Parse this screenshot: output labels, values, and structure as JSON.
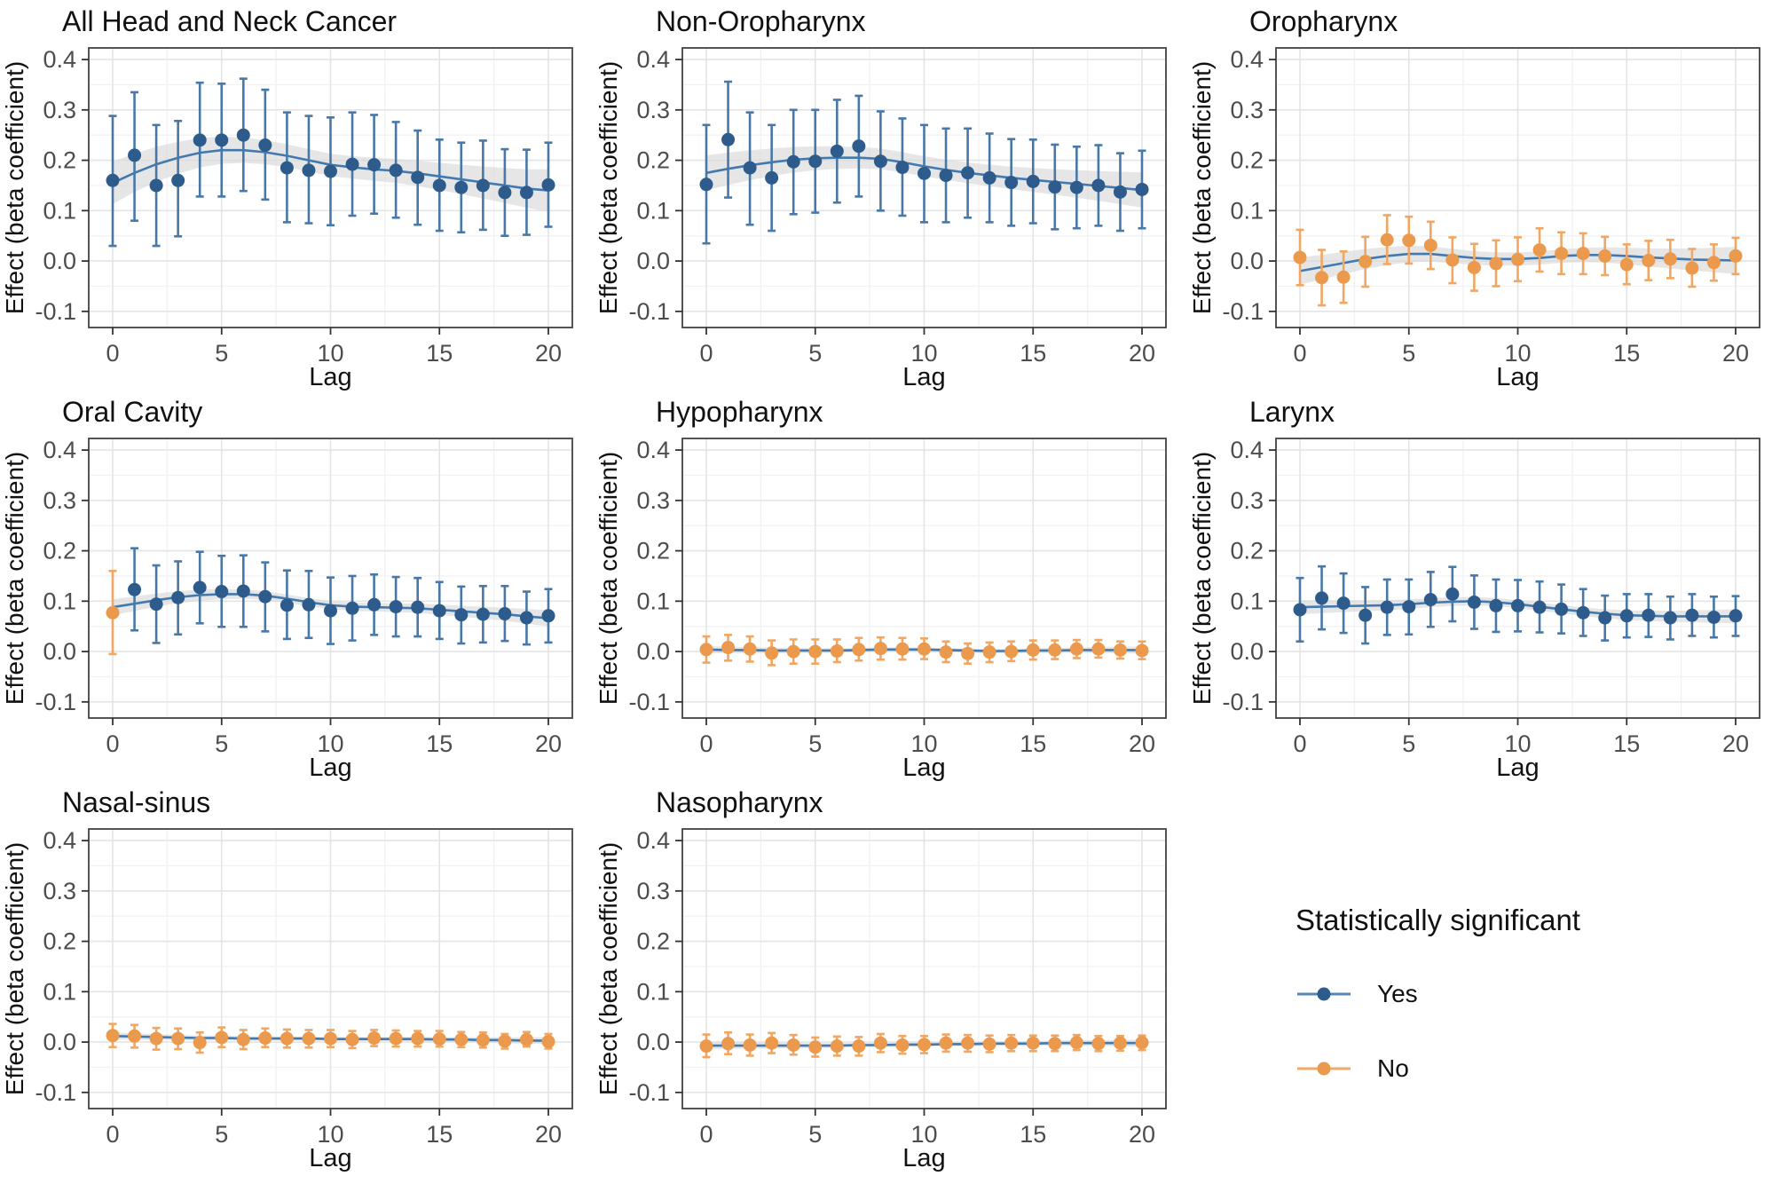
{
  "figure": {
    "ylabel": "Effect (beta coefficient)",
    "xlabel": "Lag",
    "lags": [
      0,
      1,
      2,
      3,
      4,
      5,
      6,
      7,
      8,
      9,
      10,
      11,
      12,
      13,
      14,
      15,
      16,
      17,
      18,
      19,
      20
    ],
    "axes": {
      "xlim": [
        -1.1,
        21.1
      ],
      "ylim": [
        -0.132,
        0.423
      ],
      "xtick_vals": [
        0,
        5,
        10,
        15,
        20
      ],
      "xtick_labels": [
        "0",
        "5",
        "10",
        "15",
        "20"
      ],
      "xtick_minor": [
        2.5,
        7.5,
        12.5,
        17.5
      ],
      "ytick_vals": [
        -0.1,
        0.0,
        0.1,
        0.2,
        0.3,
        0.4
      ],
      "ytick_labels": [
        "-0.1",
        "0.0",
        "0.1",
        "0.2",
        "0.3",
        "0.4"
      ],
      "ytick_minor": [
        -0.05,
        0.05,
        0.15,
        0.25,
        0.35
      ],
      "grid": "on"
    },
    "colors": {
      "sig_point": "#2d5c8c",
      "sig_bar": "#4878a8",
      "nonsig_point": "#eb9a4d",
      "nonsig_bar": "#f1a763",
      "smooth_line": "#4179b0",
      "ribbon": "#d9d9d9",
      "grid_major": "#e4e4e4",
      "grid_minor": "#f2f2f2",
      "panel_border": "#424242",
      "tick_mark": "#333333",
      "tick_text": "#4d4d4d",
      "axis_title": "#111111"
    },
    "legend": {
      "title": "Statistically significant",
      "items": [
        {
          "label": "Yes",
          "point_color": "#2d5c8c",
          "line_color": "#5585b5"
        },
        {
          "label": "No",
          "point_color": "#eb9a4d",
          "line_color": "#f2a966"
        }
      ]
    }
  },
  "chart_data": [
    {
      "type": "scatter",
      "title": "All Head and Neck Cancer",
      "xlabel": "Lag",
      "ylabel": "Effect (beta coefficient)",
      "significant": "all",
      "y": [
        0.16,
        0.21,
        0.15,
        0.16,
        0.24,
        0.24,
        0.25,
        0.23,
        0.185,
        0.18,
        0.178,
        0.192,
        0.191,
        0.18,
        0.166,
        0.15,
        0.146,
        0.15,
        0.136,
        0.136,
        0.151
      ],
      "lower": [
        0.03,
        0.08,
        0.03,
        0.049,
        0.128,
        0.128,
        0.139,
        0.122,
        0.077,
        0.075,
        0.071,
        0.09,
        0.094,
        0.086,
        0.072,
        0.06,
        0.057,
        0.062,
        0.05,
        0.052,
        0.068
      ],
      "upper": [
        0.288,
        0.335,
        0.27,
        0.278,
        0.354,
        0.352,
        0.362,
        0.34,
        0.295,
        0.288,
        0.285,
        0.295,
        0.29,
        0.276,
        0.259,
        0.241,
        0.235,
        0.239,
        0.222,
        0.221,
        0.235
      ],
      "smooth": [
        0.155,
        0.175,
        0.192,
        0.205,
        0.215,
        0.22,
        0.22,
        0.216,
        0.209,
        0.2,
        0.191,
        0.186,
        0.182,
        0.179,
        0.174,
        0.168,
        0.162,
        0.156,
        0.15,
        0.144,
        0.14
      ],
      "ribbon": {
        "mid": 0.022,
        "edge": 0.042
      }
    },
    {
      "type": "scatter",
      "title": "Non-Oropharynx",
      "xlabel": "Lag",
      "ylabel": "Effect (beta coefficient)",
      "significant": "all",
      "y": [
        0.152,
        0.241,
        0.185,
        0.165,
        0.197,
        0.198,
        0.218,
        0.228,
        0.198,
        0.186,
        0.174,
        0.17,
        0.175,
        0.165,
        0.156,
        0.158,
        0.147,
        0.146,
        0.15,
        0.137,
        0.142
      ],
      "lower": [
        0.035,
        0.126,
        0.072,
        0.06,
        0.093,
        0.096,
        0.116,
        0.128,
        0.1,
        0.09,
        0.077,
        0.077,
        0.086,
        0.077,
        0.07,
        0.075,
        0.063,
        0.065,
        0.07,
        0.06,
        0.065
      ],
      "upper": [
        0.27,
        0.356,
        0.295,
        0.27,
        0.3,
        0.3,
        0.32,
        0.328,
        0.297,
        0.283,
        0.27,
        0.263,
        0.263,
        0.253,
        0.242,
        0.241,
        0.231,
        0.227,
        0.23,
        0.214,
        0.219
      ],
      "smooth": [
        0.175,
        0.183,
        0.19,
        0.196,
        0.201,
        0.204,
        0.205,
        0.205,
        0.203,
        0.196,
        0.188,
        0.181,
        0.175,
        0.17,
        0.165,
        0.161,
        0.157,
        0.153,
        0.149,
        0.145,
        0.141
      ],
      "ribbon": {
        "mid": 0.02,
        "edge": 0.035
      }
    },
    {
      "type": "scatter",
      "title": "Oropharynx",
      "xlabel": "Lag",
      "ylabel": "Effect (beta coefficient)",
      "significant": "none",
      "y": [
        0.007,
        -0.033,
        -0.032,
        -0.001,
        0.042,
        0.041,
        0.031,
        0.002,
        -0.013,
        -0.005,
        0.003,
        0.022,
        0.015,
        0.015,
        0.01,
        -0.007,
        0.001,
        0.004,
        -0.014,
        -0.003,
        0.01
      ],
      "lower": [
        -0.048,
        -0.088,
        -0.083,
        -0.051,
        -0.006,
        -0.005,
        -0.016,
        -0.044,
        -0.059,
        -0.05,
        -0.04,
        -0.021,
        -0.026,
        -0.026,
        -0.028,
        -0.046,
        -0.038,
        -0.034,
        -0.051,
        -0.039,
        -0.026
      ],
      "upper": [
        0.062,
        0.022,
        0.019,
        0.048,
        0.091,
        0.088,
        0.078,
        0.047,
        0.034,
        0.041,
        0.047,
        0.065,
        0.057,
        0.055,
        0.048,
        0.033,
        0.04,
        0.042,
        0.024,
        0.033,
        0.046
      ],
      "smooth": [
        -0.02,
        -0.012,
        -0.004,
        0.004,
        0.01,
        0.014,
        0.014,
        0.01,
        0.006,
        0.004,
        0.004,
        0.006,
        0.01,
        0.012,
        0.012,
        0.01,
        0.007,
        0.005,
        0.003,
        0.002,
        0.001
      ],
      "ribbon": {
        "mid": 0.013,
        "edge": 0.027
      }
    },
    {
      "type": "scatter",
      "title": "Oral Cavity",
      "xlabel": "Lag",
      "ylabel": "Effect (beta coefficient)",
      "significant": {
        "except": [
          0
        ]
      },
      "y": [
        0.077,
        0.123,
        0.094,
        0.107,
        0.127,
        0.119,
        0.12,
        0.109,
        0.092,
        0.093,
        0.081,
        0.086,
        0.093,
        0.089,
        0.088,
        0.081,
        0.073,
        0.074,
        0.075,
        0.067,
        0.071
      ],
      "lower": [
        -0.005,
        0.042,
        0.017,
        0.034,
        0.056,
        0.049,
        0.049,
        0.04,
        0.025,
        0.027,
        0.015,
        0.022,
        0.033,
        0.03,
        0.03,
        0.025,
        0.016,
        0.018,
        0.021,
        0.014,
        0.018
      ],
      "upper": [
        0.16,
        0.205,
        0.171,
        0.179,
        0.198,
        0.19,
        0.191,
        0.177,
        0.161,
        0.16,
        0.147,
        0.15,
        0.153,
        0.148,
        0.146,
        0.138,
        0.129,
        0.13,
        0.13,
        0.119,
        0.124
      ],
      "smooth": [
        0.088,
        0.095,
        0.102,
        0.108,
        0.112,
        0.114,
        0.114,
        0.111,
        0.105,
        0.098,
        0.092,
        0.089,
        0.088,
        0.087,
        0.086,
        0.083,
        0.08,
        0.077,
        0.074,
        0.07,
        0.066
      ],
      "ribbon": {
        "mid": 0.008,
        "edge": 0.016
      }
    },
    {
      "type": "scatter",
      "title": "Hypopharynx",
      "xlabel": "Lag",
      "ylabel": "Effect (beta coefficient)",
      "significant": "none",
      "y": [
        0.004,
        0.008,
        0.005,
        -0.003,
        0.0,
        0.0,
        0.001,
        0.004,
        0.006,
        0.005,
        0.005,
        -0.001,
        -0.004,
        -0.001,
        0.0,
        0.003,
        0.003,
        0.005,
        0.005,
        0.003,
        0.002
      ],
      "lower": [
        -0.022,
        -0.018,
        -0.02,
        -0.027,
        -0.024,
        -0.024,
        -0.021,
        -0.018,
        -0.016,
        -0.016,
        -0.015,
        -0.021,
        -0.024,
        -0.021,
        -0.019,
        -0.016,
        -0.015,
        -0.013,
        -0.012,
        -0.014,
        -0.015
      ],
      "upper": [
        0.03,
        0.033,
        0.03,
        0.022,
        0.024,
        0.024,
        0.024,
        0.027,
        0.028,
        0.027,
        0.026,
        0.02,
        0.016,
        0.018,
        0.02,
        0.022,
        0.022,
        0.023,
        0.023,
        0.02,
        0.02
      ],
      "smooth": [
        0.004,
        0.003,
        0.003,
        0.002,
        0.002,
        0.002,
        0.002,
        0.003,
        0.004,
        0.004,
        0.004,
        0.003,
        0.002,
        0.001,
        0.001,
        0.002,
        0.002,
        0.003,
        0.003,
        0.003,
        0.003
      ],
      "ribbon": {
        "mid": 0.004,
        "edge": 0.007
      }
    },
    {
      "type": "scatter",
      "title": "Larynx",
      "xlabel": "Lag",
      "ylabel": "Effect (beta coefficient)",
      "significant": "all",
      "y": [
        0.083,
        0.106,
        0.096,
        0.072,
        0.088,
        0.089,
        0.103,
        0.114,
        0.098,
        0.091,
        0.091,
        0.088,
        0.084,
        0.077,
        0.067,
        0.071,
        0.072,
        0.067,
        0.072,
        0.068,
        0.071
      ],
      "lower": [
        0.02,
        0.044,
        0.037,
        0.016,
        0.033,
        0.034,
        0.049,
        0.06,
        0.045,
        0.039,
        0.04,
        0.038,
        0.036,
        0.031,
        0.022,
        0.028,
        0.029,
        0.024,
        0.031,
        0.028,
        0.031
      ],
      "upper": [
        0.146,
        0.169,
        0.155,
        0.128,
        0.143,
        0.143,
        0.158,
        0.168,
        0.151,
        0.143,
        0.142,
        0.139,
        0.133,
        0.124,
        0.111,
        0.114,
        0.114,
        0.109,
        0.114,
        0.109,
        0.11
      ],
      "smooth": [
        0.088,
        0.089,
        0.09,
        0.091,
        0.092,
        0.094,
        0.097,
        0.099,
        0.1,
        0.098,
        0.094,
        0.089,
        0.084,
        0.079,
        0.075,
        0.072,
        0.071,
        0.07,
        0.07,
        0.07,
        0.07
      ],
      "ribbon": {
        "mid": 0.008,
        "edge": 0.014
      }
    },
    {
      "type": "scatter",
      "title": "Nasal-sinus",
      "xlabel": "Lag",
      "ylabel": "Effect (beta coefficient)",
      "significant": "none",
      "y": [
        0.013,
        0.012,
        0.007,
        0.007,
        -0.001,
        0.009,
        0.005,
        0.008,
        0.007,
        0.007,
        0.007,
        0.005,
        0.008,
        0.007,
        0.007,
        0.006,
        0.005,
        0.004,
        0.002,
        0.005,
        0.001
      ],
      "lower": [
        -0.01,
        -0.011,
        -0.015,
        -0.014,
        -0.021,
        -0.01,
        -0.014,
        -0.01,
        -0.011,
        -0.011,
        -0.01,
        -0.012,
        -0.008,
        -0.009,
        -0.009,
        -0.009,
        -0.01,
        -0.011,
        -0.013,
        -0.009,
        -0.013
      ],
      "upper": [
        0.036,
        0.034,
        0.028,
        0.027,
        0.019,
        0.029,
        0.024,
        0.027,
        0.025,
        0.024,
        0.024,
        0.022,
        0.024,
        0.023,
        0.022,
        0.022,
        0.02,
        0.019,
        0.016,
        0.02,
        0.016
      ],
      "smooth": [
        0.012,
        0.011,
        0.01,
        0.009,
        0.008,
        0.008,
        0.007,
        0.007,
        0.007,
        0.007,
        0.006,
        0.006,
        0.006,
        0.006,
        0.006,
        0.005,
        0.005,
        0.004,
        0.004,
        0.003,
        0.003
      ],
      "ribbon": {
        "mid": 0.004,
        "edge": 0.007
      }
    },
    {
      "type": "scatter",
      "title": "Nasopharynx",
      "xlabel": "Lag",
      "ylabel": "Effect (beta coefficient)",
      "significant": "none",
      "y": [
        -0.008,
        -0.003,
        -0.006,
        -0.002,
        -0.006,
        -0.01,
        -0.008,
        -0.008,
        -0.002,
        -0.006,
        -0.005,
        -0.002,
        -0.002,
        -0.004,
        -0.002,
        -0.002,
        -0.003,
        -0.001,
        -0.003,
        -0.002,
        -0.001
      ],
      "lower": [
        -0.03,
        -0.024,
        -0.027,
        -0.022,
        -0.025,
        -0.029,
        -0.027,
        -0.027,
        -0.02,
        -0.023,
        -0.022,
        -0.019,
        -0.019,
        -0.02,
        -0.018,
        -0.018,
        -0.018,
        -0.016,
        -0.018,
        -0.017,
        -0.016
      ],
      "upper": [
        0.015,
        0.019,
        0.015,
        0.018,
        0.014,
        0.009,
        0.011,
        0.01,
        0.016,
        0.012,
        0.012,
        0.015,
        0.014,
        0.013,
        0.014,
        0.013,
        0.013,
        0.014,
        0.012,
        0.012,
        0.013
      ],
      "smooth": [
        -0.007,
        -0.007,
        -0.007,
        -0.007,
        -0.007,
        -0.007,
        -0.007,
        -0.006,
        -0.006,
        -0.005,
        -0.005,
        -0.004,
        -0.004,
        -0.003,
        -0.003,
        -0.003,
        -0.002,
        -0.002,
        -0.002,
        -0.002,
        -0.002
      ],
      "ribbon": {
        "mid": 0.004,
        "edge": 0.007
      }
    }
  ]
}
